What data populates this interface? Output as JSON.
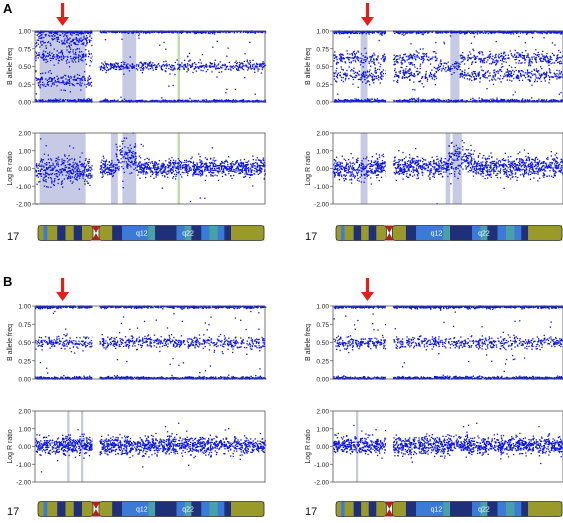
{
  "panel_labels": [
    "A",
    "B"
  ],
  "chromosome": {
    "number": "17",
    "band_labels": [
      "q12",
      "q22"
    ]
  },
  "colors": {
    "points": "#0a14e6",
    "highlight": "#b4b8dc",
    "highlight_green": "#9fd08a",
    "arrow": "#e0201a",
    "ideo_olive": "#9a9a2a",
    "ideo_dark": "#1f2f7a",
    "ideo_light": "#3b7bd8",
    "ideo_teal": "#48a0a8",
    "centromere": "#b02020"
  },
  "chart_data": [
    {
      "type": "scatter",
      "panel": "A",
      "position": "left",
      "metric": "baf",
      "ylabel": "B allele freq",
      "ylim": [
        0,
        1
      ],
      "yticks": [
        "1.00",
        "0.75",
        "0.50",
        "0.25",
        "0.00"
      ],
      "arrow_x": 0.12,
      "gaps": [
        [
          0.25,
          0.28
        ]
      ],
      "segments": [
        {
          "x": [
            0.0,
            0.25
          ],
          "bands": [
            0.0,
            0.29,
            0.64,
            0.87,
            1.0
          ],
          "noise": 0.05
        },
        {
          "x": [
            0.28,
            1.0
          ],
          "bands": [
            0.0,
            0.5,
            1.0
          ],
          "noise": 0.035
        }
      ],
      "highlights": [
        [
          0.02,
          0.22,
          "highlight"
        ],
        [
          0.38,
          0.44,
          "highlight"
        ],
        [
          0.62,
          0.63,
          "highlight_green"
        ]
      ]
    },
    {
      "type": "scatter",
      "panel": "A",
      "position": "left",
      "metric": "lrr",
      "ylabel": "Log R ratio",
      "ylim": [
        -2,
        2
      ],
      "yticks": [
        "2.00",
        "1.00",
        "0.00",
        "-1.00",
        "-2.00"
      ],
      "gaps": [
        [
          0.25,
          0.28
        ]
      ],
      "segments": [
        {
          "x": [
            0.0,
            0.25
          ],
          "mean": -0.15,
          "noise": 0.4
        },
        {
          "x": [
            0.28,
            0.35
          ],
          "mean": 0.05,
          "noise": 0.25
        },
        {
          "x": [
            0.35,
            0.44
          ],
          "mean": 0.6,
          "noise": 0.45
        },
        {
          "x": [
            0.44,
            1.0
          ],
          "mean": 0.02,
          "noise": 0.25
        }
      ],
      "highlights": [
        [
          0.02,
          0.22,
          "highlight"
        ],
        [
          0.33,
          0.36,
          "highlight"
        ],
        [
          0.38,
          0.44,
          "highlight"
        ],
        [
          0.62,
          0.63,
          "highlight_green"
        ]
      ]
    },
    {
      "type": "scatter",
      "panel": "A",
      "position": "right",
      "metric": "baf",
      "ylabel": "B allele freq",
      "ylim": [
        0,
        1
      ],
      "yticks": [
        "1.00",
        "0.75",
        "0.50",
        "0.25",
        "0.00"
      ],
      "arrow_x": 0.15,
      "gaps": [
        [
          0.23,
          0.26
        ]
      ],
      "segments": [
        {
          "x": [
            0.0,
            0.23
          ],
          "bands": [
            0.0,
            0.38,
            0.62,
            1.0
          ],
          "noise": 0.05
        },
        {
          "x": [
            0.26,
            0.45
          ],
          "bands": [
            0.0,
            0.38,
            0.62,
            1.0
          ],
          "noise": 0.05
        },
        {
          "x": [
            0.45,
            0.55
          ],
          "bands": [
            0.0,
            0.5,
            1.0
          ],
          "noise": 0.04
        },
        {
          "x": [
            0.55,
            1.0
          ],
          "bands": [
            0.0,
            0.38,
            0.62,
            1.0
          ],
          "noise": 0.045
        }
      ],
      "highlights": [
        [
          0.12,
          0.15,
          "highlight"
        ],
        [
          0.51,
          0.55,
          "highlight"
        ]
      ]
    },
    {
      "type": "scatter",
      "panel": "A",
      "position": "right",
      "metric": "lrr",
      "ylabel": "Log R ratio",
      "ylim": [
        -2,
        2
      ],
      "yticks": [
        "2.00",
        "1.00",
        "0.00",
        "-1.00",
        "-2.00"
      ],
      "gaps": [
        [
          0.23,
          0.26
        ]
      ],
      "segments": [
        {
          "x": [
            0.0,
            0.23
          ],
          "mean": 0.0,
          "noise": 0.3
        },
        {
          "x": [
            0.26,
            0.5
          ],
          "mean": 0.1,
          "noise": 0.3
        },
        {
          "x": [
            0.5,
            0.6
          ],
          "mean": 0.5,
          "noise": 0.4
        },
        {
          "x": [
            0.6,
            1.0
          ],
          "mean": 0.1,
          "noise": 0.3
        }
      ],
      "highlights": [
        [
          0.12,
          0.15,
          "highlight"
        ],
        [
          0.49,
          0.51,
          "highlight"
        ],
        [
          0.52,
          0.56,
          "highlight"
        ]
      ]
    },
    {
      "type": "scatter",
      "panel": "B",
      "position": "left",
      "metric": "baf",
      "ylabel": "B allele freq",
      "ylim": [
        0,
        1
      ],
      "yticks": [
        "1.00",
        "0.75",
        "0.50",
        "0.25",
        "0.00"
      ],
      "arrow_x": 0.12,
      "gaps": [
        [
          0.25,
          0.28
        ]
      ],
      "segments": [
        {
          "x": [
            0.0,
            1.0
          ],
          "bands": [
            0.0,
            0.5,
            1.0
          ],
          "noise": 0.04
        }
      ],
      "highlights": []
    },
    {
      "type": "scatter",
      "panel": "B",
      "position": "left",
      "metric": "lrr",
      "ylabel": "Log R ratio",
      "ylim": [
        -2,
        2
      ],
      "yticks": [
        "2.00",
        "1.00",
        "0.00",
        "-1.00",
        "-2.00"
      ],
      "gaps": [
        [
          0.25,
          0.28
        ]
      ],
      "segments": [
        {
          "x": [
            0.0,
            1.0
          ],
          "mean": 0.05,
          "noise": 0.25
        }
      ],
      "highlights": [
        [
          0.14,
          0.15,
          "highlight"
        ],
        [
          0.2,
          0.21,
          "highlight"
        ]
      ]
    },
    {
      "type": "scatter",
      "panel": "B",
      "position": "right",
      "metric": "baf",
      "ylabel": "B allele freq",
      "ylim": [
        0,
        1
      ],
      "yticks": [
        "1.00",
        "0.75",
        "0.50",
        "0.25",
        "0.00"
      ],
      "arrow_x": 0.15,
      "gaps": [
        [
          0.23,
          0.26
        ]
      ],
      "segments": [
        {
          "x": [
            0.0,
            1.0
          ],
          "bands": [
            0.0,
            0.5,
            1.0
          ],
          "noise": 0.04
        }
      ],
      "highlights": []
    },
    {
      "type": "scatter",
      "panel": "B",
      "position": "right",
      "metric": "lrr",
      "ylabel": "Log R ratio",
      "ylim": [
        -2,
        2
      ],
      "yticks": [
        "2.00",
        "1.00",
        "0.00",
        "-1.00",
        "-2.00"
      ],
      "gaps": [
        [
          0.23,
          0.26
        ]
      ],
      "segments": [
        {
          "x": [
            0.0,
            1.0
          ],
          "mean": 0.05,
          "noise": 0.25
        }
      ],
      "highlights": [
        [
          0.1,
          0.11,
          "highlight"
        ]
      ]
    }
  ]
}
